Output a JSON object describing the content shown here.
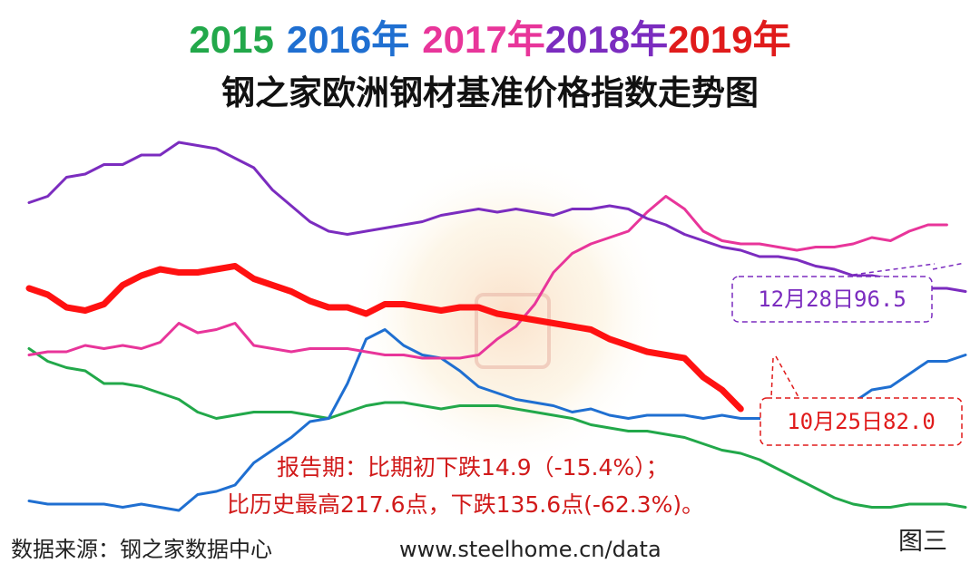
{
  "chart_data": {
    "type": "line",
    "title_years": [
      {
        "text": "2015",
        "color": "#22a84a"
      },
      {
        "text": "2016年",
        "color": "#1f6fd1"
      },
      {
        "text": "2017年",
        "color": "#e8359a"
      },
      {
        "text": "2018年",
        "color": "#7b2cbf"
      },
      {
        "text": "2019年",
        "color": "#e01b1b"
      }
    ],
    "title": "钢之家欧洲钢材基准价格指数走势图",
    "grid": false,
    "series": [
      {
        "name": "2015",
        "color": "#22a84a",
        "width": 3,
        "values": [
          108,
          104,
          102,
          101,
          97,
          97,
          96,
          94,
          92,
          88,
          86,
          87,
          88,
          88,
          88,
          87,
          86,
          88,
          90,
          91,
          91,
          90,
          89,
          90,
          90,
          90,
          89,
          88,
          87,
          86,
          84,
          83,
          82,
          82,
          81,
          80,
          78,
          76,
          75,
          73,
          70,
          67,
          64,
          61,
          59,
          58,
          58,
          59,
          59,
          59,
          58
        ]
      },
      {
        "name": "2016年",
        "color": "#1f6fd1",
        "width": 3,
        "values": [
          60,
          59,
          59,
          59,
          59,
          58,
          59,
          58,
          57,
          62,
          63,
          65,
          72,
          76,
          80,
          85,
          86,
          97,
          111,
          114,
          109,
          106,
          105,
          101,
          96,
          94,
          92,
          91,
          90,
          88,
          89,
          87,
          86,
          87,
          87,
          87,
          86,
          87,
          86,
          86,
          86,
          85,
          85,
          86,
          91,
          95,
          96,
          100,
          104,
          104,
          106
        ]
      },
      {
        "name": "2017年",
        "color": "#e8359a",
        "width": 3,
        "values": [
          106,
          107,
          107,
          109,
          108,
          109,
          108,
          110,
          116,
          113,
          114,
          116,
          109,
          108,
          107,
          108,
          108,
          108,
          107,
          106,
          106,
          105,
          105,
          105,
          106,
          111,
          115,
          122,
          132,
          138,
          141,
          143,
          145,
          151,
          156,
          152,
          145,
          142,
          141,
          141,
          140,
          139,
          140,
          140,
          141,
          143,
          142,
          145,
          147,
          147
        ]
      },
      {
        "name": "2018年",
        "color": "#7b2cbf",
        "width": 3,
        "values": [
          154,
          156,
          162,
          163,
          166,
          166,
          169,
          169,
          173,
          172,
          171,
          168,
          165,
          158,
          153,
          148,
          145,
          144,
          145,
          146,
          147,
          148,
          150,
          151,
          152,
          151,
          152,
          151,
          150,
          152,
          152,
          153,
          152,
          149,
          147,
          144,
          142,
          140,
          139,
          137,
          137,
          136,
          134,
          133,
          131,
          131,
          130,
          128,
          127,
          127,
          126
        ]
      },
      {
        "name": "2019年",
        "color": "#ff1111",
        "width": 7,
        "values": [
          127,
          125,
          121,
          120,
          122,
          128,
          131,
          133,
          132,
          132,
          133,
          134,
          130,
          128,
          126,
          123,
          121,
          121,
          119,
          122,
          122,
          121,
          120,
          121,
          121,
          119,
          118,
          117,
          116,
          115,
          114,
          111,
          109,
          107,
          106,
          105,
          99,
          95,
          89
        ]
      }
    ],
    "callouts": [
      {
        "text": "12月28日96.5",
        "color": "#7b2cbf"
      },
      {
        "text": "10月25日82.0",
        "color": "#e01b1b"
      }
    ],
    "notes": [
      "报告期：比期初下跌14.9（-15.4%）；",
      "比历史最高217.6点，下跌135.6点(-62.3%)。"
    ]
  },
  "footer": {
    "source": "数据来源：钢之家数据中心",
    "url": "www.steelhome.cn/data",
    "figure_label": "图三"
  }
}
